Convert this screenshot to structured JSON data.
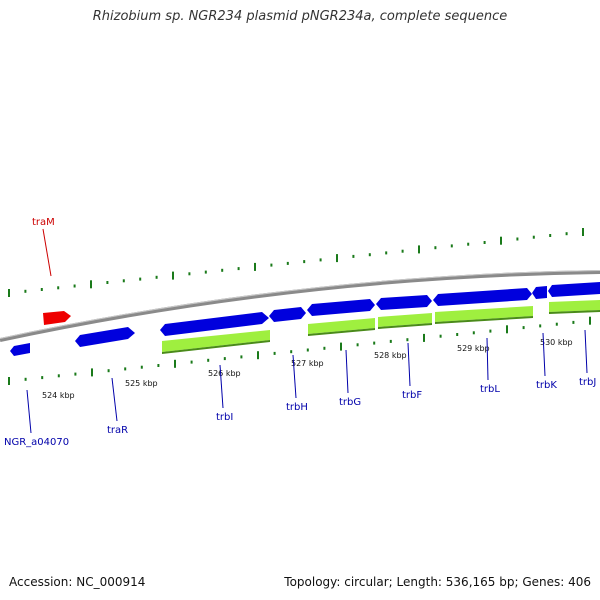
{
  "title": "Rhizobium sp. NGR234 plasmid pNGR234a, complete sequence",
  "footer": {
    "accession": "Accession: NC_000914",
    "summary": "Topology: circular; Length: 536,165 bp; Genes: 406"
  },
  "colors": {
    "backbone": "#8a8a8a",
    "gene_forward": "#0000dd",
    "gene_reverse": "#0000dd",
    "gene_highlight": "#ee0000",
    "orf_band": "#9fef3f",
    "orf_band_dark": "#4a8a1a",
    "tick": "#1a7a1a",
    "label_blue": "#0000aa",
    "label_red": "#cc0000"
  },
  "kbp_labels": [
    "524 kbp",
    "525 kbp",
    "526 kbp",
    "527 kbp",
    "528 kbp",
    "529 kbp",
    "530 kbp"
  ],
  "genes": [
    {
      "name": "traM",
      "color": "red"
    },
    {
      "name": "NGR_a04070",
      "color": "blue"
    },
    {
      "name": "traR",
      "color": "blue"
    },
    {
      "name": "trbI",
      "color": "blue"
    },
    {
      "name": "trbH",
      "color": "blue"
    },
    {
      "name": "trbG",
      "color": "blue"
    },
    {
      "name": "trbF",
      "color": "blue"
    },
    {
      "name": "trbL",
      "color": "blue"
    },
    {
      "name": "trbK",
      "color": "blue"
    },
    {
      "name": "trbJ",
      "color": "blue"
    }
  ]
}
